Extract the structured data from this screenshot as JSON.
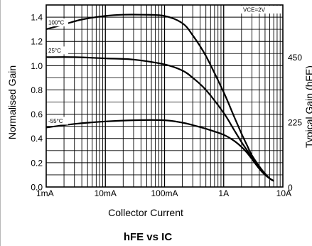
{
  "chart_data": {
    "type": "line",
    "title": "hFE vs IC",
    "xlabel": "Collector Current",
    "ylabel": "Normalised Gain",
    "ylabel_right": "Typical Gain (hFE)",
    "x_scale": "log",
    "xlim": [
      0.001,
      10
    ],
    "ylim": [
      0,
      1.5
    ],
    "x_ticks": [
      {
        "value": 0.001,
        "label": "1mA"
      },
      {
        "value": 0.01,
        "label": "10mA"
      },
      {
        "value": 0.1,
        "label": "100mA"
      },
      {
        "value": 1,
        "label": "1A"
      },
      {
        "value": 10,
        "label": "10A"
      }
    ],
    "y_ticks": [
      {
        "value": 0.0,
        "label": "0.0"
      },
      {
        "value": 0.2,
        "label": "0.2"
      },
      {
        "value": 0.4,
        "label": "0.4"
      },
      {
        "value": 0.6,
        "label": "0.6"
      },
      {
        "value": 0.8,
        "label": "0.8"
      },
      {
        "value": 1.0,
        "label": "1.0"
      },
      {
        "value": 1.2,
        "label": "1.2"
      },
      {
        "value": 1.4,
        "label": "1.4"
      }
    ],
    "y2_ticks": [
      {
        "value": 0,
        "label": "0"
      },
      {
        "value": 225,
        "label": "225"
      },
      {
        "value": 450,
        "label": "450"
      }
    ],
    "y2_per_y": 420,
    "grid": true,
    "annotations": [
      {
        "text": "VCE=2V",
        "position": "top-right"
      }
    ],
    "series": [
      {
        "name": "100°C",
        "x": [
          0.001,
          0.002,
          0.004,
          0.01,
          0.02,
          0.04,
          0.1,
          0.2,
          0.3,
          0.5,
          1,
          1.5,
          2,
          2.5,
          3,
          4,
          5,
          6,
          7
        ],
        "y": [
          1.3,
          1.34,
          1.38,
          1.41,
          1.42,
          1.42,
          1.41,
          1.35,
          1.25,
          1.08,
          0.78,
          0.58,
          0.44,
          0.34,
          0.26,
          0.17,
          0.11,
          0.07,
          0.05
        ]
      },
      {
        "name": "25°C",
        "x": [
          0.001,
          0.003,
          0.01,
          0.03,
          0.1,
          0.2,
          0.3,
          0.5,
          1,
          1.5,
          2,
          2.5,
          3,
          4,
          5,
          6,
          7
        ],
        "y": [
          1.07,
          1.07,
          1.06,
          1.05,
          1.01,
          0.96,
          0.9,
          0.8,
          0.61,
          0.47,
          0.37,
          0.3,
          0.24,
          0.16,
          0.11,
          0.07,
          0.05
        ]
      },
      {
        "name": "-55°C",
        "x": [
          0.001,
          0.003,
          0.01,
          0.03,
          0.1,
          0.2,
          0.3,
          0.5,
          1,
          1.5,
          2,
          2.5,
          3,
          4,
          5,
          6,
          7
        ],
        "y": [
          0.49,
          0.52,
          0.54,
          0.55,
          0.55,
          0.53,
          0.51,
          0.48,
          0.43,
          0.38,
          0.33,
          0.28,
          0.23,
          0.15,
          0.1,
          0.07,
          0.05
        ]
      }
    ]
  }
}
